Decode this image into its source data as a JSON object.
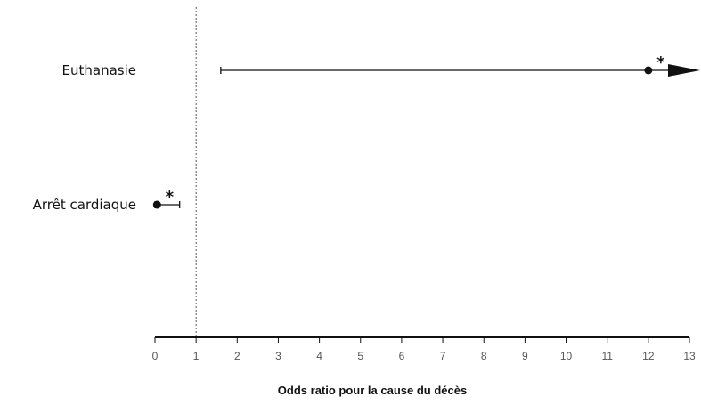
{
  "chart_data": {
    "type": "forest",
    "xlabel": "Odds ratio pour la cause du décès",
    "xlim": [
      0,
      13
    ],
    "xticks": [
      0,
      1,
      2,
      3,
      4,
      5,
      6,
      7,
      8,
      9,
      10,
      11,
      12,
      13
    ],
    "reference_line": 1,
    "reference_line_style": "dotted",
    "grid": false,
    "legend": "none",
    "rows": [
      {
        "label": "Euthanasie",
        "estimate": 12,
        "ci_low": 1.6,
        "ci_high": 13,
        "ci_high_open": true,
        "significance": "*"
      },
      {
        "label": "Arrêt cardiaque",
        "estimate": 0.05,
        "ci_low": 0,
        "ci_high": 0.6,
        "ci_high_open": false,
        "significance": "*"
      }
    ],
    "colors": {
      "ink": "#111111",
      "tick_text": "#555555",
      "reference_line": "#555555"
    }
  }
}
